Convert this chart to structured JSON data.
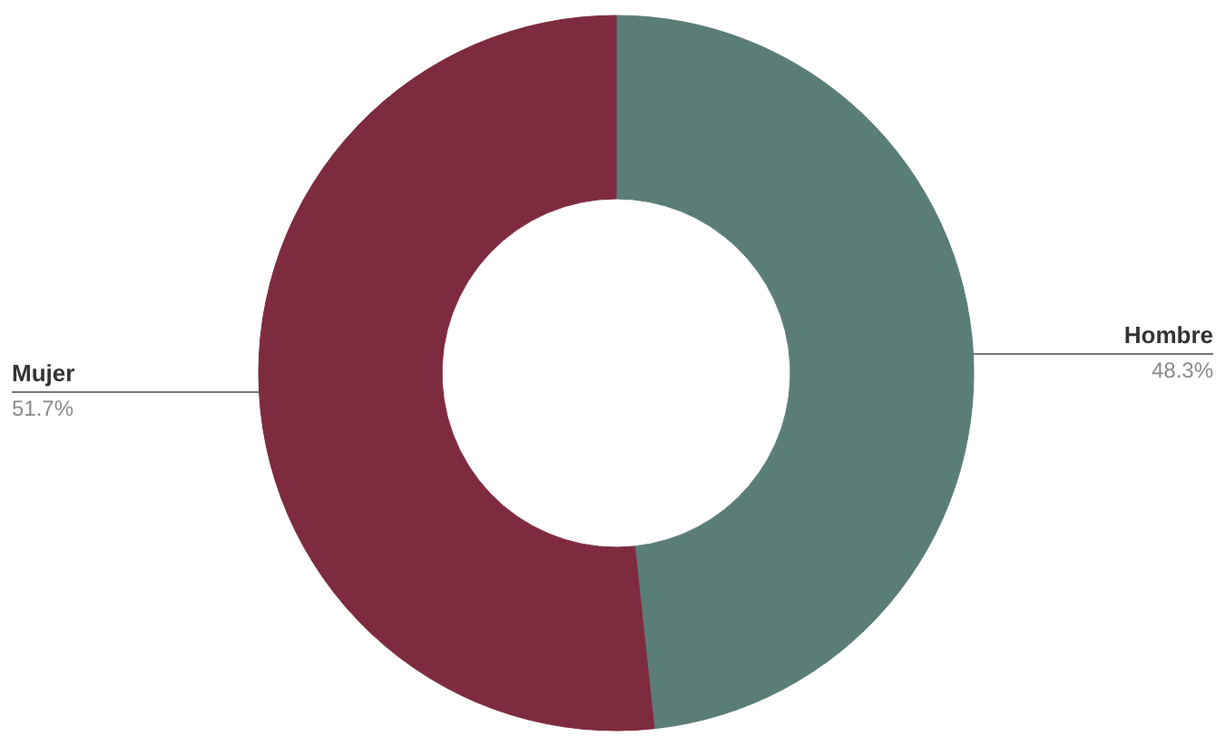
{
  "chart_data": {
    "type": "donut",
    "categories": [
      "Hombre",
      "Mujer"
    ],
    "values": [
      48.3,
      51.7
    ],
    "colors": [
      "#5b7d77",
      "#7e2b3f"
    ],
    "value_labels": [
      "48.3%",
      "51.7%"
    ]
  }
}
